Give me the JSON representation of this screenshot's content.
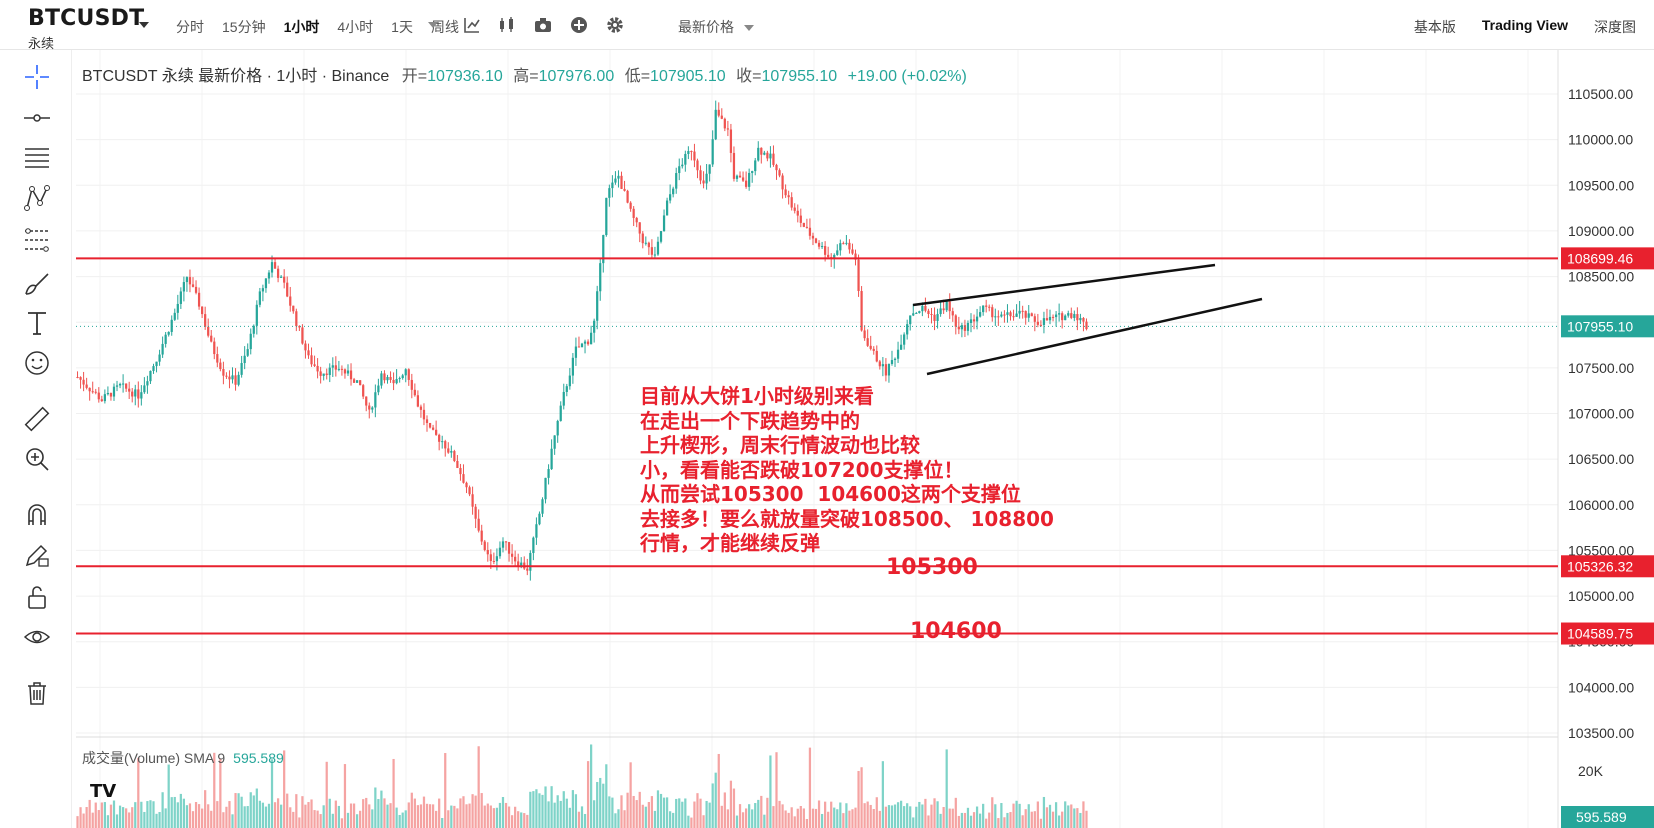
{
  "header": {
    "symbol": "BTCUSDT",
    "subtitle": "永续",
    "intervals": [
      "分时",
      "15分钟",
      "1小时",
      "4小时",
      "1天",
      "周线"
    ],
    "active_interval": "1小时",
    "price_type": "最新价格",
    "views": [
      "基本版",
      "Trading View",
      "深度图"
    ],
    "active_view": "Trading View"
  },
  "toolbar_icons": [
    "chevron-down-icon",
    "indicator-icon",
    "candle-type-icon",
    "camera-icon",
    "plus-circle-icon",
    "gear-icon"
  ],
  "left_tools": [
    "crosshair-icon",
    "horizontal-line-icon",
    "fib-lines-icon",
    "pattern-icon",
    "measure-lines-icon",
    "brush-icon",
    "text-icon",
    "emoji-icon",
    "ruler-icon",
    "zoom-icon",
    "magnet-icon",
    "pencil-lock-icon",
    "unlock-icon",
    "eye-icon",
    "trash-icon"
  ],
  "legend": {
    "title": "BTCUSDT 永续 最新价格 · 1小时 · Binance",
    "open_label": "开=",
    "open": "107936.10",
    "high_label": "高=",
    "high": "107976.00",
    "low_label": "低=",
    "low": "107905.10",
    "close_label": "收=",
    "close": "107955.10",
    "change": "+19.00 (+0.02%)"
  },
  "price_axis": {
    "ticks": [
      "110500.00",
      "110000.00",
      "109500.00",
      "109000.00",
      "108500.00",
      "108000.00",
      "107500.00",
      "107000.00",
      "106500.00",
      "106000.00",
      "105500.00",
      "105000.00",
      "104500.00",
      "104000.00",
      "103500.00"
    ],
    "current_price": "107955.10",
    "current_color": "#26a69a",
    "levels": [
      {
        "value": 108699.46,
        "label": "108699.46"
      },
      {
        "value": 105326.32,
        "label": "105326.32"
      },
      {
        "value": 104589.75,
        "label": "104589.75"
      }
    ],
    "level_color": "#e8212e"
  },
  "volume": {
    "legend_label": "成交量(Volume) SMA 9",
    "sma_value": "595.589",
    "axis_tick": "20K",
    "current_label": "595.589"
  },
  "annotation": {
    "text": "目前从大饼1小时级别来看\n在走出一个下跌趋势中的\n上升楔形，周末行情波动也比较\n小，看看能否跌破107200支撑位！\n从而尝试105300  104600这两个支撑位\n去接多！要么就放量突破108500、 108800\n行情，才能继续反弹",
    "level_1": "105300",
    "level_2": "104600"
  },
  "colors": {
    "up": "#26a69a",
    "down": "#ef5350",
    "annotation": "#e8212e"
  }
}
